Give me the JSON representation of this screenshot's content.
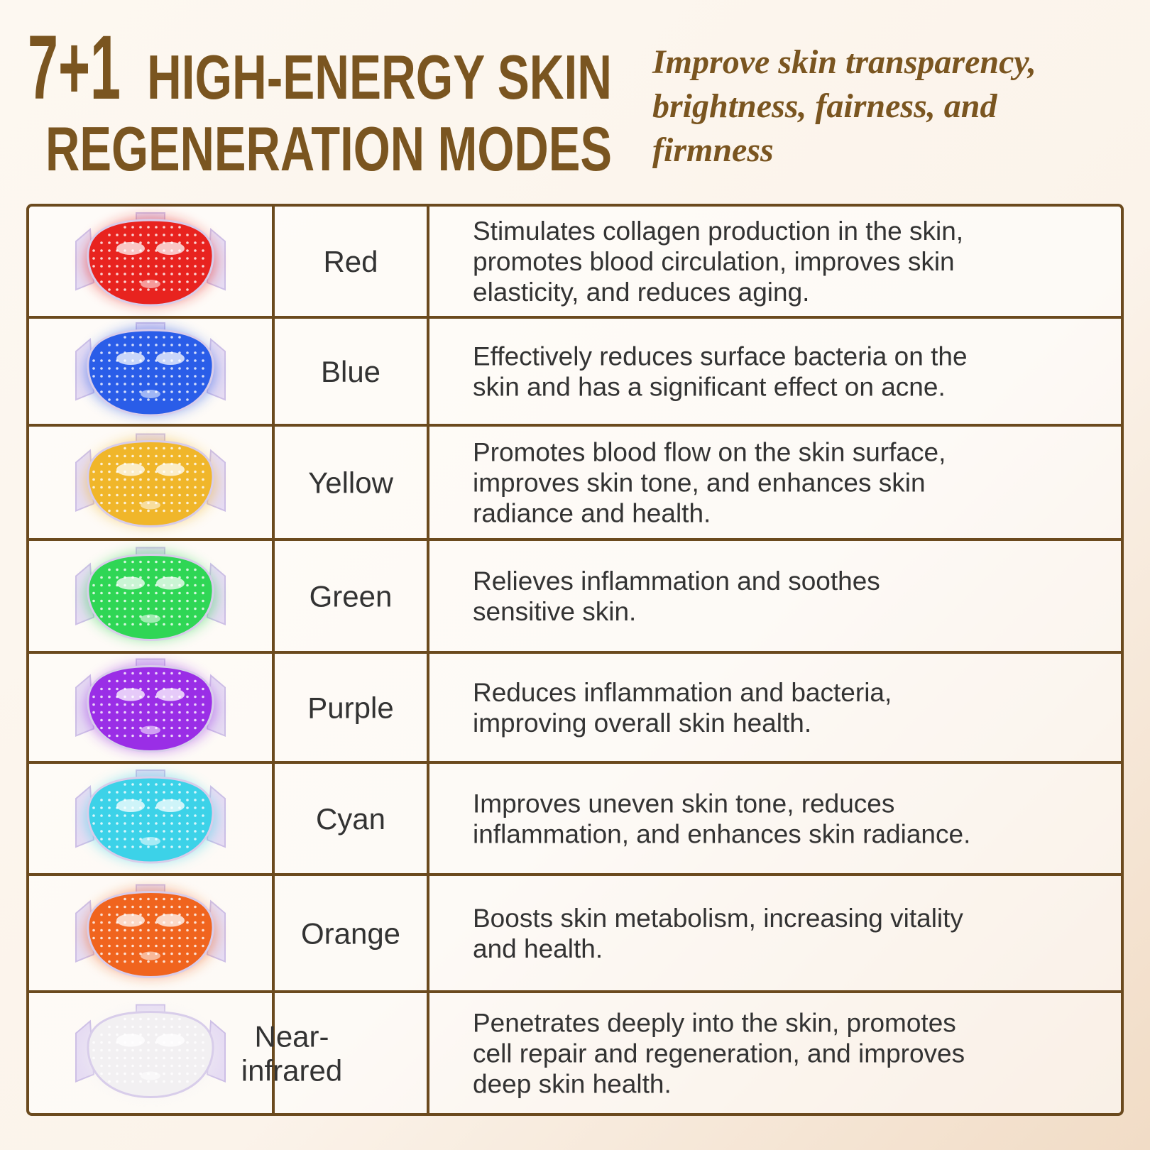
{
  "header": {
    "prefix": "7+1",
    "title_lines": [
      "HIGH-ENERGY SKIN",
      "REGENERATION MODES"
    ],
    "subtitle_lines": [
      "Improve skin transparency,",
      "brightness, fairness, and",
      "firmness"
    ]
  },
  "table": {
    "rows": [
      {
        "name": [
          "Red"
        ],
        "color": "#e8231f",
        "description": [
          "Stimulates collagen production in the skin,",
          "promotes blood circulation, improves skin",
          "elasticity, and reduces aging."
        ]
      },
      {
        "name": [
          "Blue"
        ],
        "color": "#2a5de8",
        "description": [
          "Effectively reduces surface bacteria on the",
          "skin and has a significant effect on acne."
        ]
      },
      {
        "name": [
          "Yellow"
        ],
        "color": "#f0b62a",
        "description": [
          "Promotes blood flow on the skin surface,",
          "improves skin tone, and enhances skin",
          "radiance and health."
        ]
      },
      {
        "name": [
          "Green"
        ],
        "color": "#2fd655",
        "description": [
          "Relieves inflammation and soothes",
          "sensitive skin."
        ]
      },
      {
        "name": [
          "Purple"
        ],
        "color": "#9a2ee6",
        "description": [
          "Reduces inflammation and bacteria,",
          "improving overall skin health."
        ]
      },
      {
        "name": [
          "Cyan"
        ],
        "color": "#3cd2e8",
        "description": [
          "Improves uneven skin tone, reduces",
          "inflammation, and enhances skin radiance."
        ]
      },
      {
        "name": [
          "Orange"
        ],
        "color": "#f0641e",
        "description": [
          "Boosts skin metabolism, increasing vitality",
          "and health."
        ]
      },
      {
        "name": [
          "Near-",
          "infrared"
        ],
        "color": "#f2f0f2",
        "description": [
          "Penetrates deeply into the skin, promotes",
          "cell repair and regeneration, and improves",
          "deep skin health."
        ]
      }
    ]
  }
}
